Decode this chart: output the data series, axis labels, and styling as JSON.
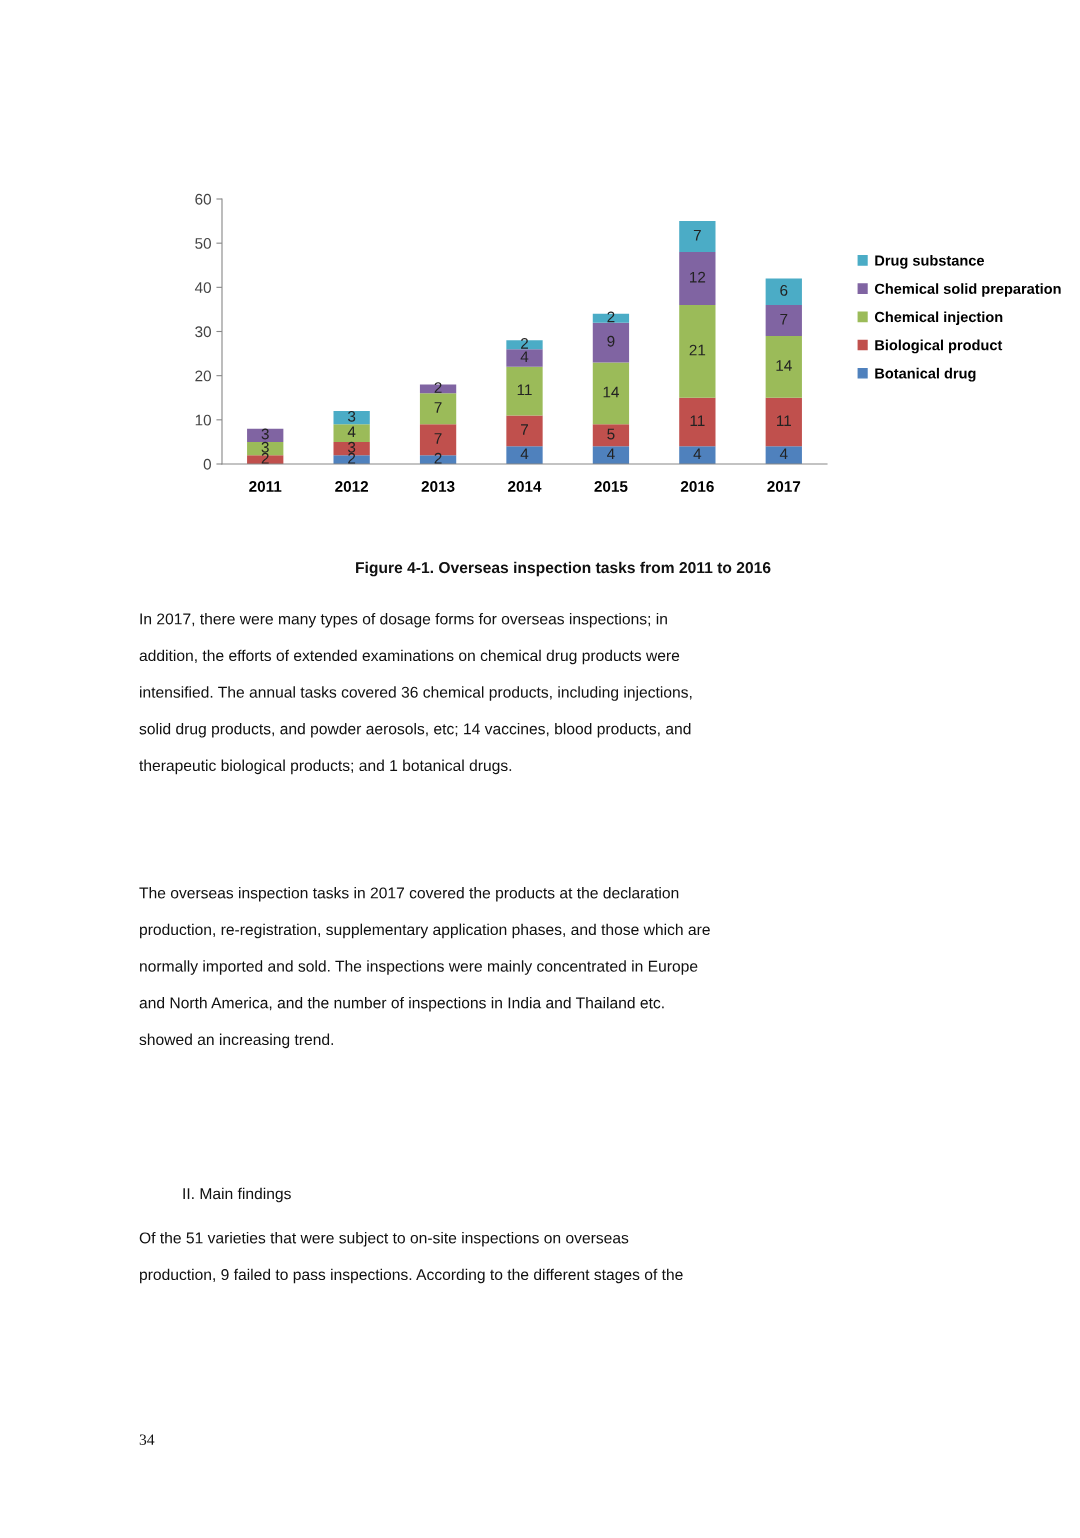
{
  "chart_data": {
    "type": "bar",
    "stacked": true,
    "data_labels": true,
    "legend": "right",
    "grid": false,
    "categories": [
      "2011",
      "2012",
      "2013",
      "2014",
      "2015",
      "2016",
      "2017"
    ],
    "ylim": [
      0,
      60
    ],
    "yticks": [
      0,
      10,
      20,
      30,
      40,
      50,
      60
    ],
    "series": [
      {
        "name": "Botanical drug",
        "color": "#4f81bd",
        "values": [
          null,
          2,
          2,
          4,
          4,
          4,
          4
        ]
      },
      {
        "name": "Biological product",
        "color": "#c0504d",
        "values": [
          2,
          3,
          7,
          7,
          5,
          11,
          11
        ]
      },
      {
        "name": "Chemical injection",
        "color": "#9bbb59",
        "values": [
          3,
          4,
          7,
          11,
          14,
          21,
          14
        ]
      },
      {
        "name": "Chemical solid preparation",
        "color": "#8064a2",
        "values": [
          3,
          null,
          2,
          4,
          9,
          12,
          7
        ]
      },
      {
        "name": "Drug substance",
        "color": "#4bacc6",
        "values": [
          null,
          3,
          null,
          2,
          2,
          7,
          6
        ]
      }
    ],
    "annotations": [
      "Figure 4-1. Overseas inspection tasks from 2011 to 2016",
      "In 2017, there were many types of dosage forms for overseas inspections; in\naddition, the efforts of extended examinations on chemical drug products were\nintensified. The annual tasks covered 36 chemical products, including injections,\nsolid drug products, and powder aerosols, etc; 14 vaccines, blood products, and\ntherapeutic biological products; and 1 botanical drugs.",
      "The overseas inspection tasks in 2017 covered the products at the declaration\nproduction, re-registration, supplementary application phases, and those which are\nnormally imported and sold. The inspections were mainly concentrated in Europe\nand North America, and the number of inspections in India and Thailand etc.\nshowed an increasing trend.",
      "II. Main findings",
      "Of the 51 varieties that were subject to on-site inspections on overseas\nproduction, 9 failed to pass inspections. According to the different stages of the",
      "34"
    ]
  }
}
